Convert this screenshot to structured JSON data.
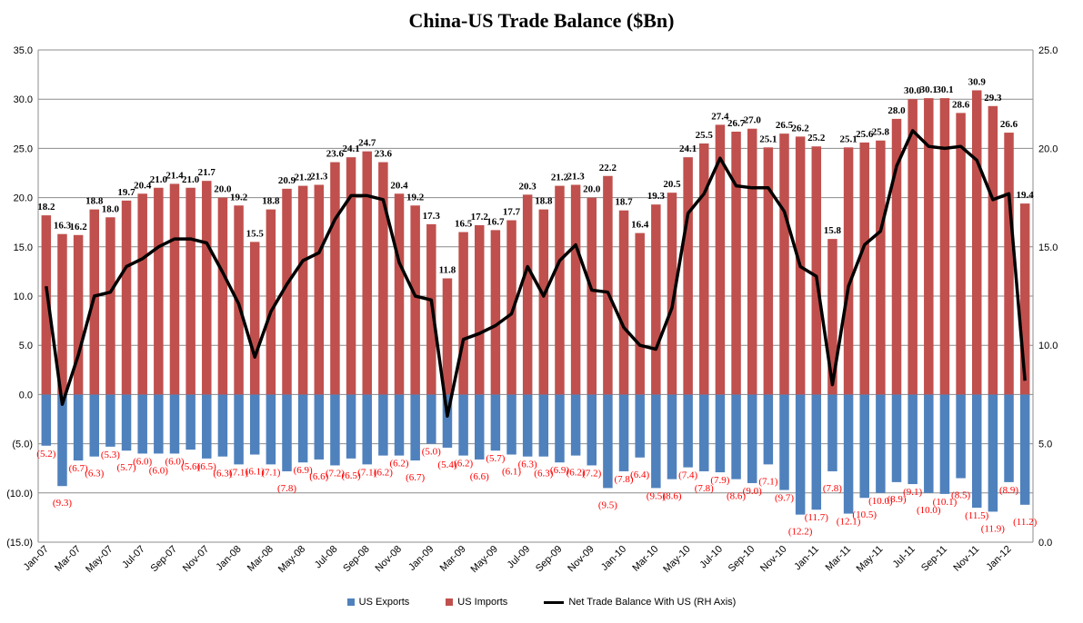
{
  "chart_data": {
    "type": "bar",
    "title": "China-US Trade Balance ($Bn)",
    "left_axis": {
      "min": -15,
      "max": 35,
      "step": 5,
      "ticks": [
        "(15.0)",
        "(10.0)",
        "(5.0)",
        "0.0",
        "5.0",
        "10.0",
        "15.0",
        "20.0",
        "25.0",
        "30.0",
        "35.0"
      ]
    },
    "right_axis": {
      "min": 0,
      "max": 25,
      "step": 5,
      "ticks": [
        "0.0",
        "5.0",
        "10.0",
        "15.0",
        "20.0",
        "25.0"
      ]
    },
    "grid": true,
    "legend_position": "bottom",
    "categories": [
      "Jan-07",
      "Feb-07",
      "Mar-07",
      "Apr-07",
      "May-07",
      "Jun-07",
      "Jul-07",
      "Aug-07",
      "Sep-07",
      "Oct-07",
      "Nov-07",
      "Dec-07",
      "Jan-08",
      "Feb-08",
      "Mar-08",
      "Apr-08",
      "May-08",
      "Jun-08",
      "Jul-08",
      "Aug-08",
      "Sep-08",
      "Oct-08",
      "Nov-08",
      "Dec-08",
      "Jan-09",
      "Feb-09",
      "Mar-09",
      "Apr-09",
      "May-09",
      "Jun-09",
      "Jul-09",
      "Aug-09",
      "Sep-09",
      "Oct-09",
      "Nov-09",
      "Dec-09",
      "Jan-10",
      "Feb-10",
      "Mar-10",
      "Apr-10",
      "May-10",
      "Jun-10",
      "Jul-10",
      "Aug-10",
      "Sep-10",
      "Oct-10",
      "Nov-10",
      "Dec-10",
      "Jan-11",
      "Feb-11",
      "Mar-11",
      "Apr-11",
      "May-11",
      "Jun-11",
      "Jul-11",
      "Aug-11",
      "Sep-11",
      "Oct-11",
      "Nov-11",
      "Dec-11",
      "Jan-12",
      "Feb-12"
    ],
    "series": [
      {
        "name": "US Exports",
        "color": "#4F81BD",
        "axis": "left",
        "values": [
          -5.2,
          -9.3,
          -6.7,
          -6.3,
          -5.3,
          -5.7,
          -6.0,
          -6.0,
          -6.0,
          -5.6,
          -6.5,
          -6.3,
          -7.1,
          -6.1,
          -7.1,
          -7.8,
          -6.9,
          -6.6,
          -7.2,
          -6.5,
          -7.1,
          -6.2,
          -6.2,
          -6.7,
          -5.0,
          -5.4,
          -6.2,
          -6.6,
          -5.7,
          -6.1,
          -6.3,
          -6.3,
          -6.9,
          -6.2,
          -7.2,
          -9.5,
          -7.8,
          -6.4,
          -9.5,
          -8.6,
          -7.4,
          -7.8,
          -7.9,
          -8.6,
          -9.0,
          -7.1,
          -9.7,
          -12.2,
          -11.7,
          -7.8,
          -12.1,
          -10.5,
          -10.0,
          -8.9,
          -9.1,
          -10.0,
          -10.1,
          -8.5,
          -11.5,
          -11.9,
          -8.9,
          -11.2
        ]
      },
      {
        "name": "US Imports",
        "color": "#C0504D",
        "axis": "left",
        "values": [
          18.2,
          16.3,
          16.2,
          18.8,
          18.0,
          19.7,
          20.4,
          21.0,
          21.4,
          21.0,
          21.7,
          20.0,
          19.2,
          15.5,
          18.8,
          20.9,
          21.2,
          21.3,
          23.6,
          24.1,
          24.7,
          23.6,
          20.4,
          19.2,
          17.3,
          11.8,
          16.5,
          17.2,
          16.7,
          17.7,
          20.3,
          18.8,
          21.2,
          21.3,
          20.0,
          22.2,
          18.7,
          16.4,
          19.3,
          20.5,
          24.1,
          25.5,
          27.4,
          26.7,
          27.0,
          25.1,
          26.5,
          26.2,
          25.2,
          15.8,
          25.1,
          25.6,
          25.8,
          28.0,
          30.0,
          30.1,
          30.1,
          28.6,
          30.9,
          29.3,
          26.6,
          19.4
        ]
      },
      {
        "name": "Net Trade Balance With US (RH Axis)",
        "color": "#000000",
        "axis": "right",
        "derived": "imports - exports"
      }
    ]
  }
}
